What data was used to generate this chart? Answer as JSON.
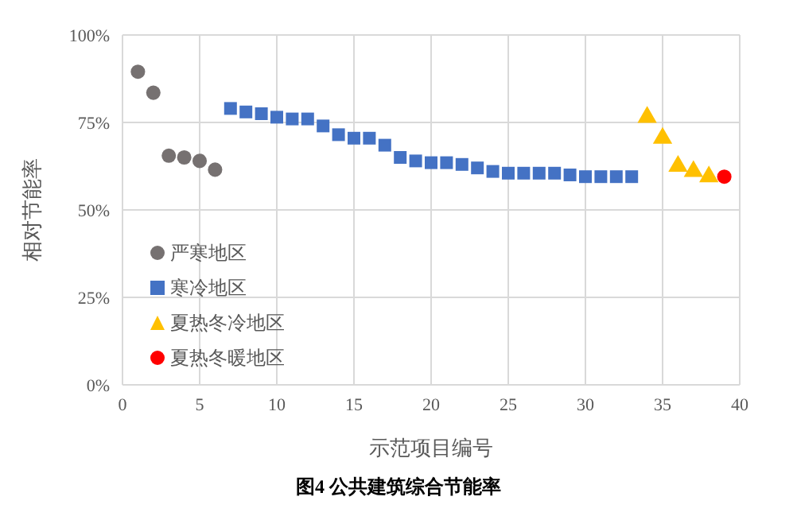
{
  "chart_data": {
    "type": "scatter",
    "title": "图4 公共建筑综合节能率",
    "xlabel": "示范项目编号",
    "ylabel": "相对节能率",
    "xlim": [
      0,
      40
    ],
    "xticks": [
      0,
      5,
      10,
      15,
      20,
      25,
      30,
      35,
      40
    ],
    "ylim": [
      0,
      100
    ],
    "yticks": [
      {
        "value": 0,
        "label": "0%"
      },
      {
        "value": 25,
        "label": "25%"
      },
      {
        "value": 50,
        "label": "50%"
      },
      {
        "value": 75,
        "label": "75%"
      },
      {
        "value": 100,
        "label": "100%"
      }
    ],
    "grid": true,
    "legend": "left",
    "series": [
      {
        "name": "严寒地区",
        "color": "#767171",
        "marker": "circle",
        "x": [
          1,
          2,
          3,
          4,
          5,
          6
        ],
        "values": [
          89.5,
          83.5,
          65.5,
          65,
          64,
          61.5
        ]
      },
      {
        "name": "寒冷地区",
        "color": "#4472c4",
        "marker": "square",
        "x": [
          7,
          8,
          9,
          10,
          11,
          12,
          13,
          14,
          15,
          16,
          17,
          18,
          19,
          20,
          21,
          22,
          23,
          24,
          25,
          26,
          27,
          28,
          29,
          30,
          31,
          32,
          33
        ],
        "values": [
          79,
          78,
          77.5,
          76.5,
          76,
          76,
          74,
          71.5,
          70.5,
          70.5,
          68.5,
          65,
          64,
          63.5,
          63.5,
          63,
          62,
          61,
          60.5,
          60.5,
          60.5,
          60.5,
          60,
          59.5,
          59.5,
          59.5,
          59.5
        ]
      },
      {
        "name": "夏热冬冷地区",
        "color": "#ffc000",
        "marker": "triangle",
        "x": [
          34,
          35,
          36,
          37,
          38
        ],
        "values": [
          76.5,
          70.5,
          62.5,
          61,
          59.5
        ]
      },
      {
        "name": "夏热冬暖地区",
        "color": "#ff0000",
        "marker": "circle",
        "x": [
          39
        ],
        "values": [
          59.5
        ]
      }
    ]
  }
}
